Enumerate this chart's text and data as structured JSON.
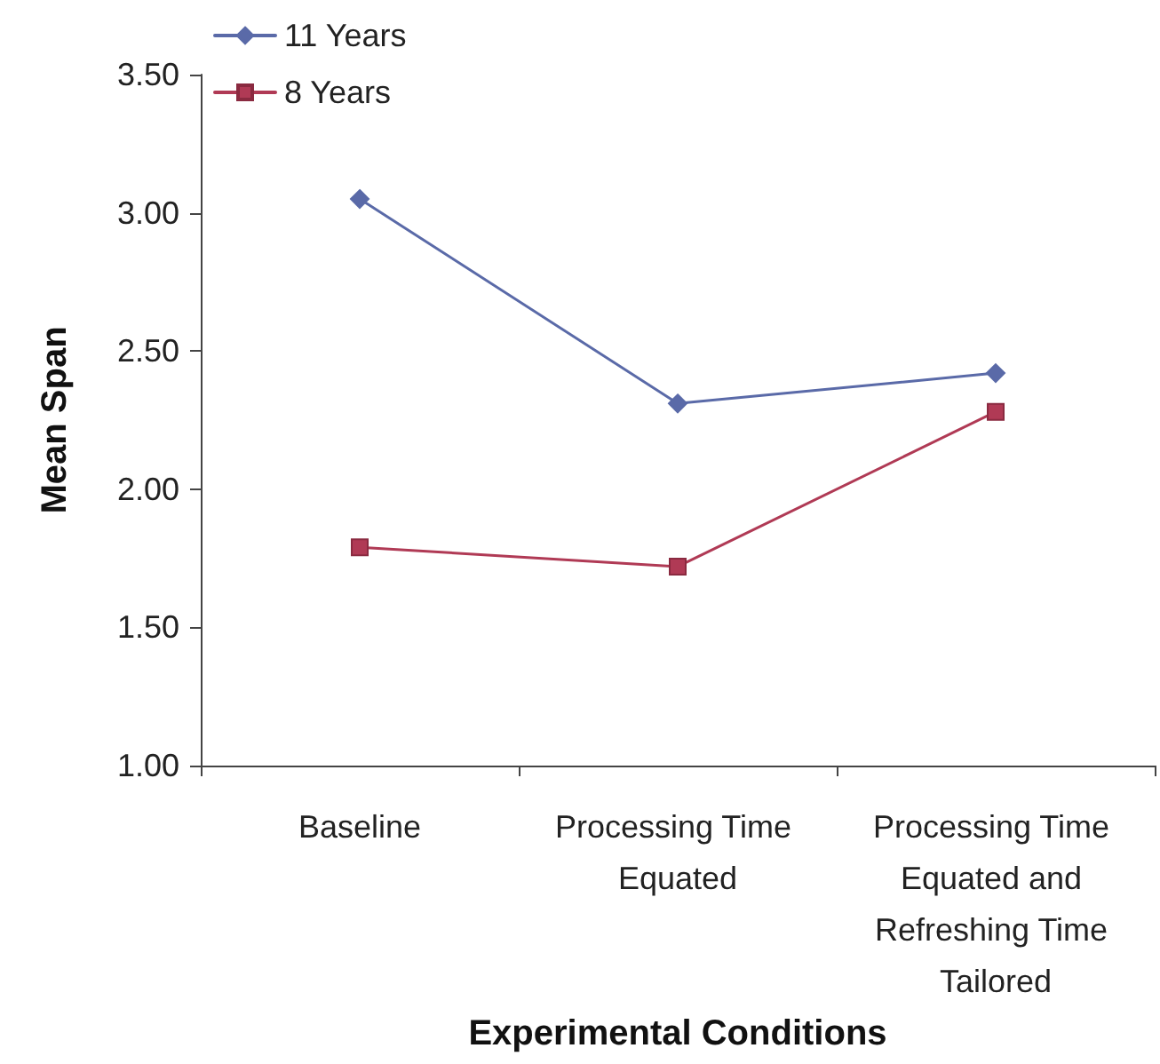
{
  "chart_data": {
    "type": "line",
    "xlabel": "Experimental Conditions",
    "ylabel": "Mean Span",
    "categories": [
      "Baseline",
      "Processing Time Equated",
      "Processing Time Equated and Refreshing Time Tailored"
    ],
    "series": [
      {
        "name": "11 Years",
        "color": "#5a6aa8",
        "marker": "diamond",
        "values": [
          3.05,
          2.31,
          2.42
        ]
      },
      {
        "name": "8 Years",
        "color": "#b03a55",
        "marker": "square",
        "values": [
          1.79,
          1.72,
          2.28
        ]
      }
    ],
    "ylim": [
      1,
      3.5
    ],
    "yticks": [
      {
        "value": 1,
        "label": "1.00"
      },
      {
        "value": 1.5,
        "label": "1.50"
      },
      {
        "value": 2,
        "label": "2.00"
      },
      {
        "value": 2.5,
        "label": "2.50"
      },
      {
        "value": 3,
        "label": "3.00"
      },
      {
        "value": 3.5,
        "label": "3.50"
      }
    ],
    "grid": false,
    "legend": "top left",
    "line_style": "solid"
  }
}
